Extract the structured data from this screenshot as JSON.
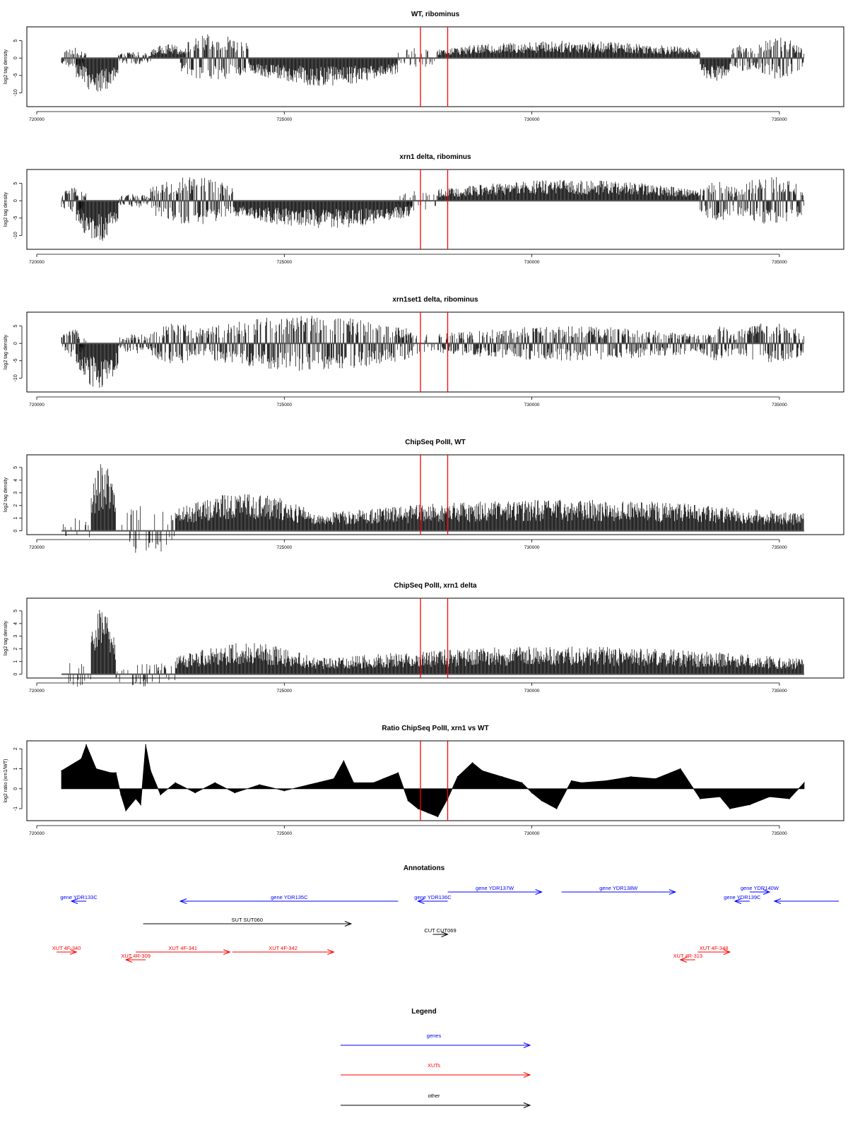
{
  "chart_data": [
    {
      "type": "bar",
      "title": "WT, ribominus",
      "ylabel": "log2 tag density",
      "xlim": [
        719800,
        736300
      ],
      "ylim": [
        -14,
        9
      ],
      "yticks": [
        -10,
        -5,
        0,
        5
      ],
      "xticks": [
        720000,
        725000,
        730000,
        735000
      ],
      "markers": [
        727750,
        728300
      ],
      "marker_color": "#ff0000",
      "segments": [
        {
          "from": 720500,
          "to": 721000,
          "sign": "mixed",
          "amp": 3
        },
        {
          "from": 720800,
          "to": 721650,
          "sign": "minus",
          "amp": 10
        },
        {
          "from": 721650,
          "to": 722300,
          "sign": "mixed",
          "amp": 2
        },
        {
          "from": 722300,
          "to": 723000,
          "sign": "plus",
          "amp": 4
        },
        {
          "from": 722900,
          "to": 724300,
          "sign": "mixed",
          "amp": 7
        },
        {
          "from": 724300,
          "to": 727300,
          "sign": "minus",
          "amp": 8
        },
        {
          "from": 727300,
          "to": 728100,
          "sign": "sparse",
          "amp": 3
        },
        {
          "from": 728100,
          "to": 733400,
          "sign": "plus",
          "amp": 5
        },
        {
          "from": 733400,
          "to": 734000,
          "sign": "minus",
          "amp": 7
        },
        {
          "from": 734000,
          "to": 734500,
          "sign": "mixed",
          "amp": 4
        },
        {
          "from": 734500,
          "to": 735500,
          "sign": "mixed",
          "amp": 6
        }
      ]
    },
    {
      "type": "bar",
      "title": "xrn1 delta, ribominus",
      "ylabel": "log2 tag density",
      "xlim": [
        719800,
        736300
      ],
      "ylim": [
        -14,
        9
      ],
      "yticks": [
        -10,
        -5,
        0,
        5
      ],
      "xticks": [
        720000,
        725000,
        730000,
        735000
      ],
      "markers": [
        727750,
        728300
      ],
      "marker_color": "#ff0000",
      "segments": [
        {
          "from": 720500,
          "to": 721000,
          "sign": "mixed",
          "amp": 4
        },
        {
          "from": 720800,
          "to": 721650,
          "sign": "minus",
          "amp": 12
        },
        {
          "from": 721650,
          "to": 722300,
          "sign": "mixed",
          "amp": 2
        },
        {
          "from": 722300,
          "to": 724000,
          "sign": "mixed",
          "amp": 7
        },
        {
          "from": 724000,
          "to": 727600,
          "sign": "minus",
          "amp": 8
        },
        {
          "from": 727300,
          "to": 728100,
          "sign": "sparse",
          "amp": 3
        },
        {
          "from": 728100,
          "to": 733400,
          "sign": "plus",
          "amp": 6
        },
        {
          "from": 733400,
          "to": 734100,
          "sign": "mixed",
          "amp": 6
        },
        {
          "from": 734100,
          "to": 735500,
          "sign": "mixed",
          "amp": 7
        }
      ]
    },
    {
      "type": "bar",
      "title": "xrn1set1 delta, ribominus",
      "ylabel": "log2 tag density",
      "xlim": [
        719800,
        736300
      ],
      "ylim": [
        -14,
        9
      ],
      "yticks": [
        -10,
        -5,
        0,
        5
      ],
      "xticks": [
        720000,
        725000,
        730000,
        735000
      ],
      "markers": [
        727750,
        728300
      ],
      "marker_color": "#ff0000",
      "segments": [
        {
          "from": 720500,
          "to": 721000,
          "sign": "mixed",
          "amp": 4
        },
        {
          "from": 720800,
          "to": 721650,
          "sign": "minus",
          "amp": 13
        },
        {
          "from": 721650,
          "to": 722300,
          "sign": "mixed",
          "amp": 3
        },
        {
          "from": 722300,
          "to": 723300,
          "sign": "mixed",
          "amp": 6
        },
        {
          "from": 723300,
          "to": 727600,
          "sign": "mixed",
          "amp": 8
        },
        {
          "from": 727300,
          "to": 728100,
          "sign": "sparse",
          "amp": 3
        },
        {
          "from": 728100,
          "to": 733400,
          "sign": "mixed",
          "amp": 5
        },
        {
          "from": 733400,
          "to": 734100,
          "sign": "mixed",
          "amp": 5
        },
        {
          "from": 734100,
          "to": 735500,
          "sign": "mixed",
          "amp": 6
        }
      ]
    },
    {
      "type": "bar",
      "title": "ChipSeq PolII, WT",
      "ylabel": "log2 tag density",
      "xlim": [
        719800,
        736300
      ],
      "ylim": [
        -0.3,
        6
      ],
      "yticks": [
        0,
        1,
        2,
        3,
        4,
        5
      ],
      "xticks": [
        720000,
        725000,
        730000,
        735000
      ],
      "markers": [
        727750,
        728300
      ],
      "marker_color": "#ff0000",
      "segments": [
        {
          "from": 720500,
          "to": 721100,
          "sign": "sparse",
          "amp": 1
        },
        {
          "from": 721100,
          "to": 721600,
          "sign": "plus",
          "amp": 5.5
        },
        {
          "from": 721600,
          "to": 722800,
          "sign": "sparse",
          "amp": 2
        },
        {
          "from": 722800,
          "to": 725600,
          "sign": "plus",
          "amp": 3
        },
        {
          "from": 725600,
          "to": 735500,
          "sign": "plus",
          "amp": 2.5
        }
      ]
    },
    {
      "type": "bar",
      "title": "ChipSeq PolII, xrn1 delta",
      "ylabel": "log2 tag density",
      "xlim": [
        719800,
        736300
      ],
      "ylim": [
        -0.3,
        6
      ],
      "yticks": [
        0,
        1,
        2,
        3,
        4,
        5
      ],
      "xticks": [
        720000,
        725000,
        730000,
        735000
      ],
      "markers": [
        727750,
        728300
      ],
      "marker_color": "#ff0000",
      "segments": [
        {
          "from": 720500,
          "to": 721100,
          "sign": "sparse",
          "amp": 1
        },
        {
          "from": 721100,
          "to": 721600,
          "sign": "plus",
          "amp": 5.5
        },
        {
          "from": 721600,
          "to": 722800,
          "sign": "sparse",
          "amp": 1
        },
        {
          "from": 722800,
          "to": 725600,
          "sign": "plus",
          "amp": 2.5
        },
        {
          "from": 725600,
          "to": 735500,
          "sign": "plus",
          "amp": 2.2
        }
      ]
    },
    {
      "type": "area",
      "title": "Ratio ChipSeq PolII, xrn1 vs WT",
      "ylabel": "log2 ratio (xrn1/WT)",
      "xlim": [
        719800,
        736300
      ],
      "ylim": [
        -1.6,
        2.4
      ],
      "yticks": [
        -1,
        0,
        1,
        2
      ],
      "xticks": [
        720000,
        725000,
        730000,
        735000
      ],
      "markers": [
        727750,
        728300
      ],
      "marker_color": "#ff0000",
      "x": [
        720500,
        720900,
        721000,
        721200,
        721500,
        721600,
        721700,
        721800,
        722000,
        722100,
        722200,
        722300,
        722500,
        722800,
        723200,
        723600,
        724000,
        724500,
        725000,
        725500,
        726000,
        726200,
        726400,
        726800,
        727000,
        727300,
        727500,
        727700,
        727900,
        728100,
        728300,
        728500,
        728800,
        729000,
        729400,
        729800,
        730000,
        730200,
        730500,
        730800,
        731000,
        731500,
        732000,
        732500,
        733000,
        733400,
        733800,
        734000,
        734400,
        734800,
        735200,
        735500
      ],
      "y": [
        0.9,
        1.5,
        2.2,
        1.0,
        0.8,
        0.8,
        -0.3,
        -1.1,
        -0.5,
        -0.8,
        2.2,
        0.9,
        -0.3,
        0.3,
        -0.2,
        0.3,
        -0.2,
        0.2,
        -0.1,
        0.2,
        0.5,
        1.4,
        0.3,
        0.3,
        0.5,
        0.8,
        -0.6,
        -1.0,
        -1.2,
        -1.4,
        -0.5,
        0.6,
        1.3,
        0.9,
        0.6,
        0.3,
        -0.2,
        -0.6,
        -1.0,
        0.4,
        0.3,
        0.4,
        0.6,
        0.5,
        1.0,
        -0.5,
        -0.4,
        -1.0,
        -0.8,
        -0.4,
        -0.5,
        0.3
      ]
    },
    {
      "type": "table",
      "title": "Annotations",
      "xlim": [
        719800,
        736300
      ],
      "genes": [
        {
          "label": "gene YDR133C",
          "from": 720700,
          "to": 721000,
          "dir": "left",
          "row": 1
        },
        {
          "label": "gene YDR135C",
          "from": 722900,
          "to": 727300,
          "dir": "left",
          "row": 1
        },
        {
          "label": "gene YDR136C",
          "from": 727700,
          "to": 728300,
          "dir": "left",
          "row": 1
        },
        {
          "label": "gene YDR137W",
          "from": 728300,
          "to": 730200,
          "dir": "right",
          "row": 0
        },
        {
          "label": "gene YDR138W",
          "from": 730600,
          "to": 732900,
          "dir": "right",
          "row": 0
        },
        {
          "label": "gene YDR139C",
          "from": 734100,
          "to": 734400,
          "dir": "left",
          "row": 1
        },
        {
          "label": "gene YDR140W",
          "from": 734400,
          "to": 734800,
          "dir": "right",
          "row": 0
        },
        {
          "label": "",
          "from": 734900,
          "to": 736200,
          "dir": "left",
          "row": 1
        }
      ],
      "other": [
        {
          "label": "SUT SUT060",
          "from": 722150,
          "to": 726350,
          "dir": "right",
          "row": 0
        },
        {
          "label": "CUT CUT069",
          "from": 728000,
          "to": 728300,
          "dir": "right",
          "row": 1
        }
      ],
      "xuts": [
        {
          "label": "XUT 4F-340",
          "from": 720400,
          "to": 720800,
          "dir": "right",
          "row": 0
        },
        {
          "label": "XUT 4R-309",
          "from": 721800,
          "to": 722200,
          "dir": "left",
          "row": 1
        },
        {
          "label": "XUT 4F-341",
          "from": 722000,
          "to": 723900,
          "dir": "right",
          "row": 0
        },
        {
          "label": "XUT 4F-342",
          "from": 723950,
          "to": 726000,
          "dir": "right",
          "row": 0
        },
        {
          "label": "XUT 4R-313",
          "from": 733000,
          "to": 733300,
          "dir": "left",
          "row": 1
        },
        {
          "label": "XUT 4F-348",
          "from": 733350,
          "to": 734000,
          "dir": "right",
          "row": 0
        }
      ]
    },
    {
      "type": "table",
      "title": "Legend",
      "entries": [
        {
          "label": "genes",
          "color": "#0000ff"
        },
        {
          "label": "XUTs",
          "color": "#ff0000"
        },
        {
          "label": "other",
          "color": "#000000"
        }
      ]
    }
  ]
}
